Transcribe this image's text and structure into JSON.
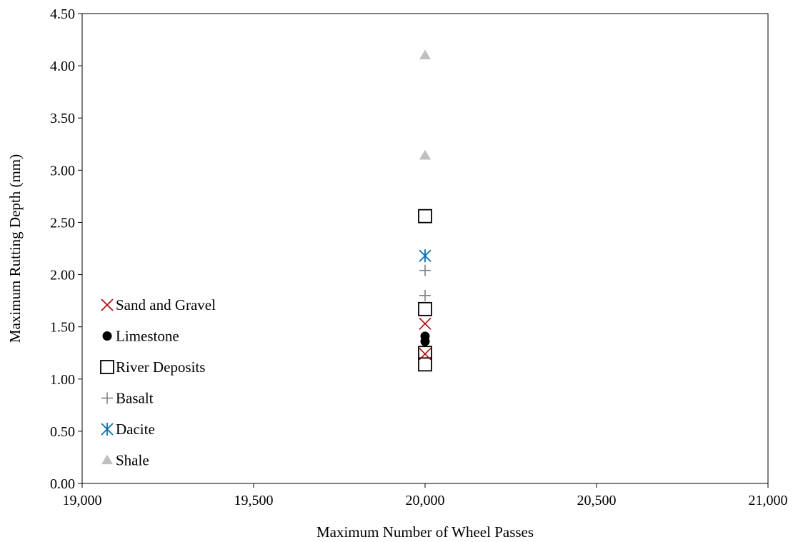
{
  "chart_data": {
    "type": "scatter",
    "xlabel": "Maximum Number of Wheel Passes",
    "ylabel": "Maximum Rutting Depth (mm)",
    "xlim": [
      19000,
      21000
    ],
    "ylim": [
      0,
      4.5
    ],
    "x_ticks": [
      "19,000",
      "19,500",
      "20,000",
      "20,500",
      "21,000"
    ],
    "x_tick_values": [
      19000,
      19500,
      20000,
      20500,
      21000
    ],
    "y_ticks": [
      "0.00",
      "0.50",
      "1.00",
      "1.50",
      "2.00",
      "2.50",
      "3.00",
      "3.50",
      "4.00",
      "4.50"
    ],
    "y_tick_values": [
      0,
      0.5,
      1.0,
      1.5,
      2.0,
      2.5,
      3.0,
      3.5,
      4.0,
      4.5
    ],
    "grid": false,
    "legend_position": "left",
    "series": [
      {
        "name": "Sand and Gravel",
        "marker": "x",
        "color": "#C00000",
        "points": [
          [
            20000,
            1.53
          ],
          [
            20000,
            1.24
          ]
        ]
      },
      {
        "name": "Limestone",
        "marker": "circle",
        "color": "#000000",
        "points": [
          [
            20000,
            1.41
          ],
          [
            20000,
            1.36
          ]
        ]
      },
      {
        "name": "River Deposits",
        "marker": "square",
        "color": "#000000",
        "points": [
          [
            20000,
            2.56
          ],
          [
            20000,
            1.67
          ],
          [
            20000,
            1.25
          ],
          [
            20000,
            1.14
          ]
        ]
      },
      {
        "name": "Basalt",
        "marker": "plus",
        "color": "#808080",
        "points": [
          [
            20000,
            2.04
          ],
          [
            20000,
            1.8
          ]
        ]
      },
      {
        "name": "Dacite",
        "marker": "asterisk",
        "color": "#0070C0",
        "points": [
          [
            20000,
            2.18
          ]
        ]
      },
      {
        "name": "Shale",
        "marker": "triangle",
        "color": "#BFBFBF",
        "points": [
          [
            20000,
            4.1
          ],
          [
            20000,
            3.14
          ]
        ]
      }
    ]
  }
}
